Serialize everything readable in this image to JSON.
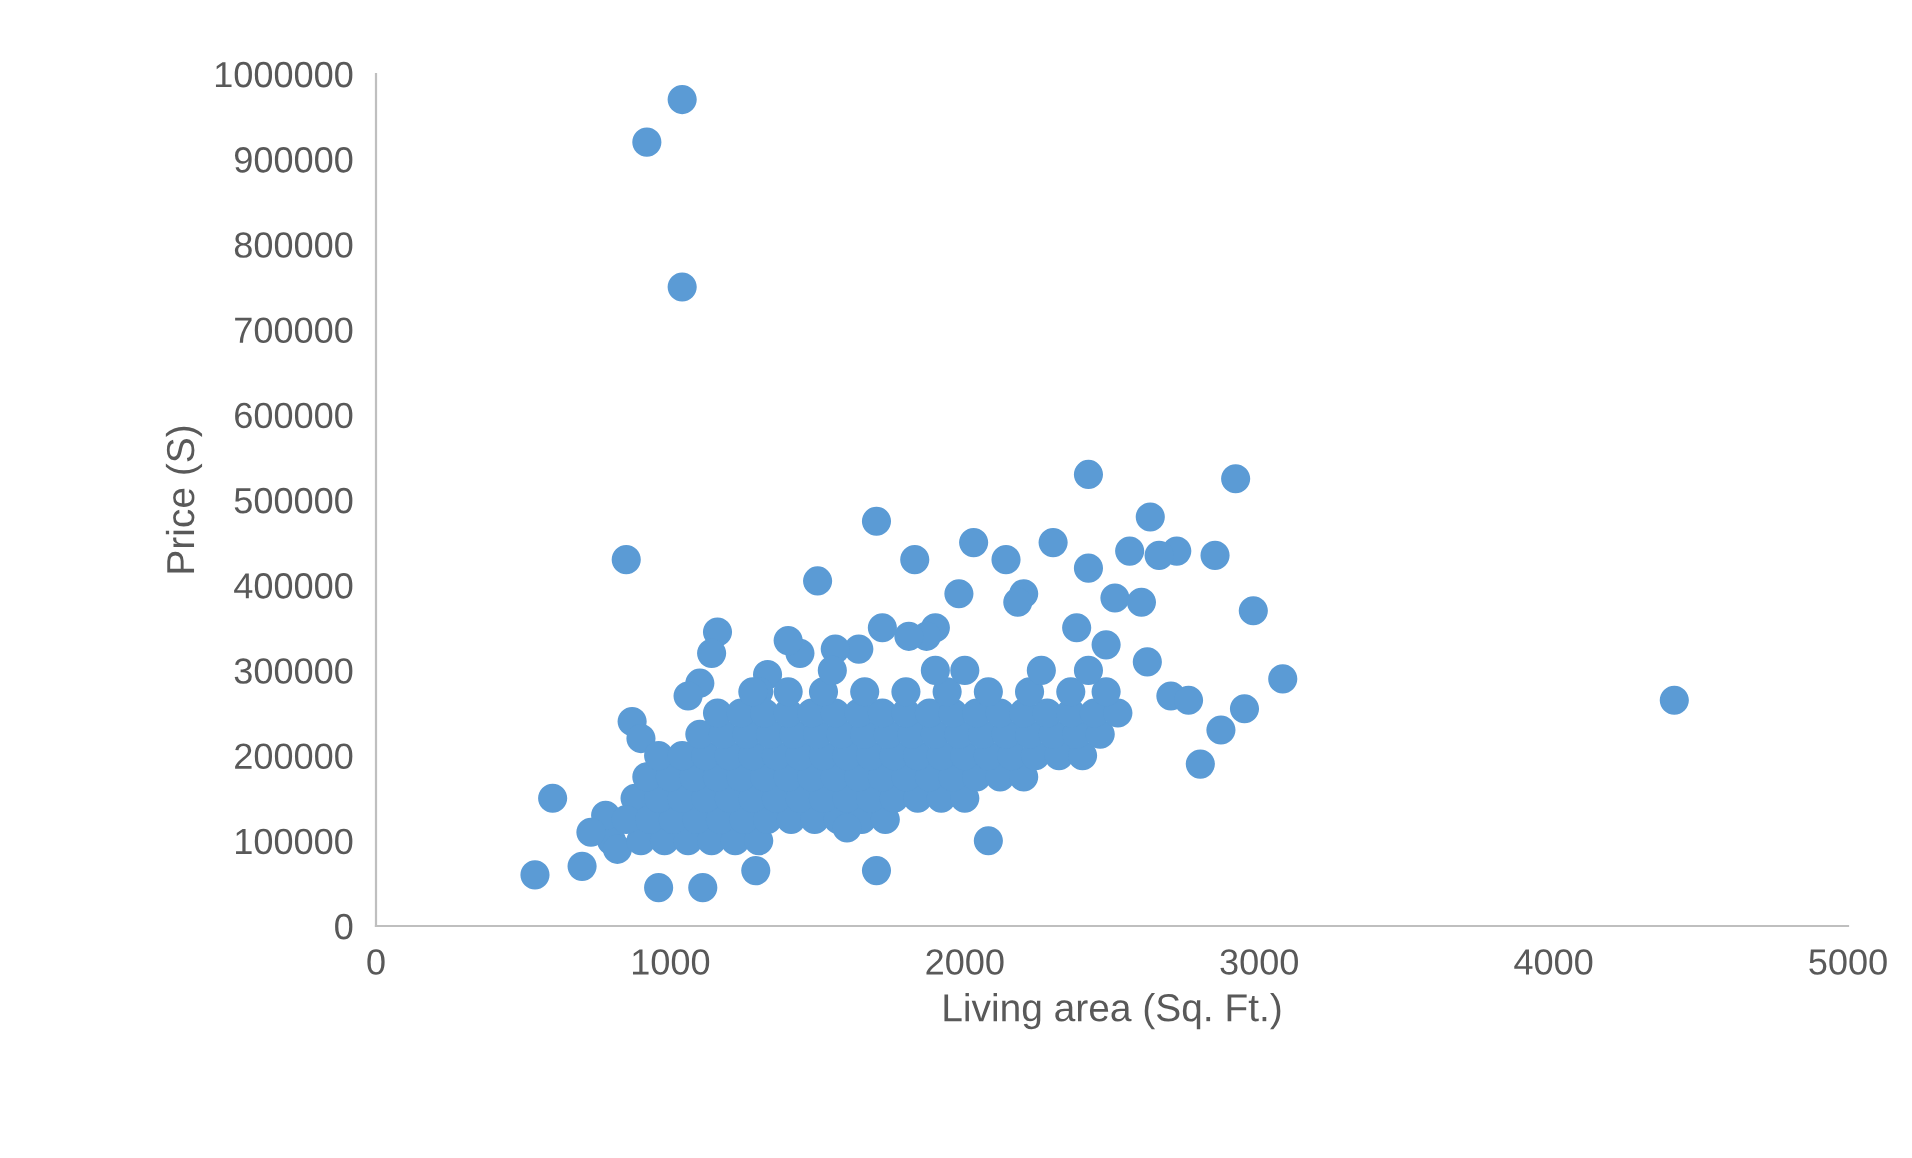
{
  "chart_data": {
    "type": "scatter",
    "xlabel": "Living area (Sq. Ft.)",
    "ylabel": "Price (S)",
    "color": "#5b9bd5",
    "marker": "circle",
    "grid": false,
    "legend": false,
    "xlim": [
      0,
      5000
    ],
    "xticks": [
      0,
      1000,
      2000,
      3000,
      4000,
      5000
    ],
    "ylim": [
      0,
      1000000
    ],
    "yticks": [
      0,
      100000,
      200000,
      300000,
      400000,
      500000,
      600000,
      700000,
      800000,
      900000,
      1000000
    ],
    "x": [
      1040,
      920,
      1040,
      850,
      4410,
      540,
      600,
      700,
      960,
      1110,
      1700,
      2080,
      2420,
      2920,
      1700,
      2630,
      1500,
      2980,
      3080,
      2800,
      2870,
      2950,
      2850,
      2720,
      2660,
      2560,
      1830,
      2030,
      2300,
      2420,
      2510,
      2600,
      2700,
      2760,
      2620,
      2480,
      2380,
      2200,
      2140,
      2180,
      1980,
      1900,
      1870,
      1810,
      1720,
      1640,
      1560,
      1440,
      1400,
      1330,
      1300,
      1160,
      1140,
      1100,
      1060,
      870,
      900,
      880,
      800,
      780,
      820,
      730,
      900,
      980,
      1060,
      1140,
      1220,
      1300,
      850,
      930,
      1010,
      1090,
      1170,
      1250,
      1330,
      1410,
      1490,
      1570,
      1650,
      1730,
      960,
      1040,
      1120,
      1200,
      1280,
      1360,
      1440,
      1520,
      1600,
      1680,
      1760,
      1840,
      1920,
      2000,
      920,
      1000,
      1080,
      1160,
      1240,
      1320,
      1400,
      1480,
      1560,
      1640,
      1720,
      1800,
      1880,
      1960,
      2040,
      2120,
      2200,
      960,
      1040,
      1120,
      1200,
      1280,
      1360,
      1440,
      1520,
      1600,
      1680,
      1760,
      1840,
      1920,
      2000,
      2080,
      2160,
      2240,
      2320,
      2400,
      1100,
      1180,
      1260,
      1340,
      1420,
      1500,
      1580,
      1660,
      1740,
      1820,
      1900,
      1980,
      2060,
      2140,
      2220,
      2300,
      2380,
      2460,
      1160,
      1240,
      1320,
      1400,
      1480,
      1560,
      1640,
      1720,
      1800,
      1880,
      1960,
      2040,
      2120,
      2200,
      2280,
      2360,
      2440,
      2520,
      1280,
      1400,
      1520,
      1660,
      1800,
      1940,
      2080,
      2220,
      2360,
      2480,
      1550,
      1900,
      2000,
      2260,
      2420,
      1290,
      1600
    ],
    "values": [
      970000,
      920000,
      750000,
      430000,
      265000,
      60000,
      150000,
      70000,
      45000,
      45000,
      65000,
      100000,
      530000,
      525000,
      475000,
      480000,
      405000,
      370000,
      290000,
      190000,
      230000,
      255000,
      435000,
      440000,
      435000,
      440000,
      430000,
      450000,
      450000,
      420000,
      385000,
      380000,
      270000,
      265000,
      310000,
      330000,
      350000,
      390000,
      430000,
      380000,
      390000,
      350000,
      340000,
      340000,
      350000,
      325000,
      325000,
      320000,
      335000,
      295000,
      275000,
      345000,
      320000,
      285000,
      270000,
      240000,
      220000,
      150000,
      100000,
      130000,
      90000,
      110000,
      100000,
      100000,
      100000,
      100000,
      100000,
      100000,
      125000,
      125000,
      125000,
      125000,
      125000,
      125000,
      125000,
      125000,
      125000,
      125000,
      125000,
      125000,
      150000,
      150000,
      150000,
      150000,
      150000,
      150000,
      150000,
      150000,
      150000,
      150000,
      150000,
      150000,
      150000,
      150000,
      175000,
      175000,
      175000,
      175000,
      175000,
      175000,
      175000,
      175000,
      175000,
      175000,
      175000,
      175000,
      175000,
      175000,
      175000,
      175000,
      175000,
      200000,
      200000,
      200000,
      200000,
      200000,
      200000,
      200000,
      200000,
      200000,
      200000,
      200000,
      200000,
      200000,
      200000,
      200000,
      200000,
      200000,
      200000,
      200000,
      225000,
      225000,
      225000,
      225000,
      225000,
      225000,
      225000,
      225000,
      225000,
      225000,
      225000,
      225000,
      225000,
      225000,
      225000,
      225000,
      225000,
      225000,
      250000,
      250000,
      250000,
      250000,
      250000,
      250000,
      250000,
      250000,
      250000,
      250000,
      250000,
      250000,
      250000,
      250000,
      250000,
      250000,
      250000,
      250000,
      275000,
      275000,
      275000,
      275000,
      275000,
      275000,
      275000,
      275000,
      275000,
      275000,
      300000,
      300000,
      300000,
      300000,
      300000,
      65000,
      115000
    ]
  }
}
